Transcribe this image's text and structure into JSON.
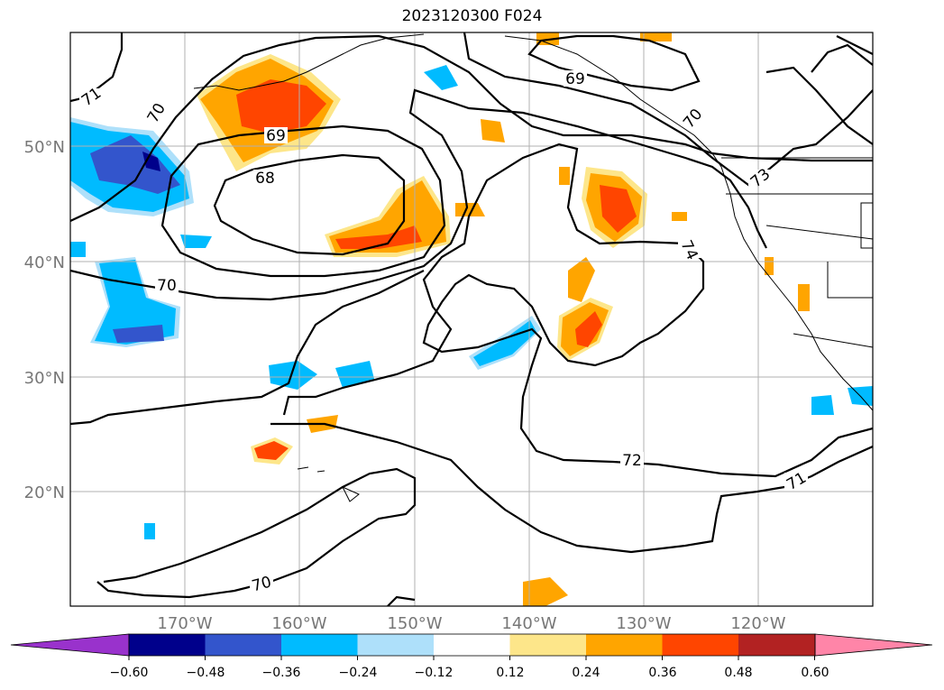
{
  "title": "2023120300 F024",
  "map": {
    "lat_labels": [
      "50°N",
      "40°N",
      "30°N",
      "20°N"
    ],
    "lon_labels": [
      "170°W",
      "160°W",
      "150°W",
      "140°W",
      "130°W",
      "120°W"
    ],
    "contour_labels": [
      "71",
      "70",
      "69",
      "68",
      "70",
      "69",
      "70",
      "73",
      "74",
      "72",
      "71",
      "70"
    ],
    "contour_color": "#000000",
    "grid": true
  },
  "colorbar": {
    "ticks": [
      "−0.60",
      "−0.48",
      "−0.36",
      "−0.24",
      "−0.12",
      "0.12",
      "0.24",
      "0.36",
      "0.48",
      "0.60"
    ],
    "colors": [
      "#9932cc",
      "#00008b",
      "#3355cc",
      "#00bbff",
      "#aee0fa",
      "#ffffff",
      "#fde68a",
      "#ffa500",
      "#ff4500",
      "#b22222",
      "#ff85a8"
    ],
    "extend": "both"
  }
}
